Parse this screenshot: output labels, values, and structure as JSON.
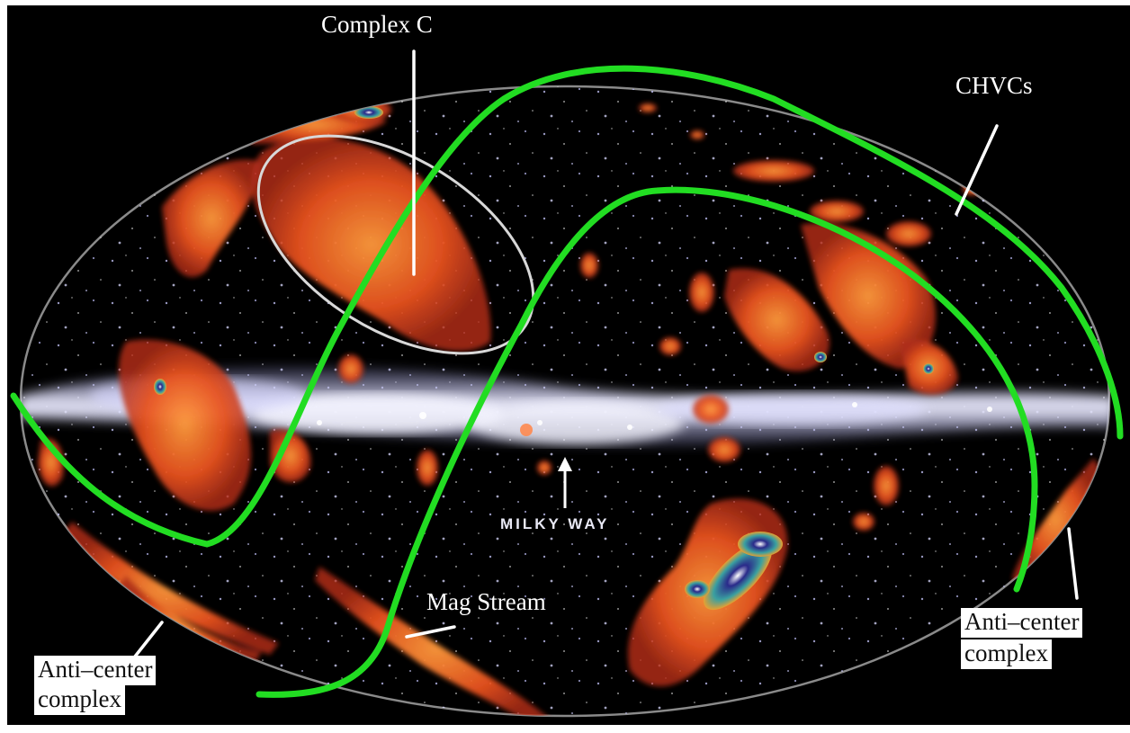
{
  "labels": {
    "complex_c": "Complex C",
    "chvcs": "CHVCs",
    "milky_way": "MILKY WAY",
    "mag_stream": "Mag Stream",
    "anti_center_left_line1": "Anti–center",
    "anti_center_left_line2": "complex",
    "anti_center_right_line1": "Anti–center",
    "anti_center_right_line2": "complex"
  },
  "colors": {
    "background": "#000000",
    "hvc_emission": "#e8521f",
    "hvc_core": "#2a2a8a",
    "milky_way": "#dcdcf5",
    "overlay_curve": "#22dd22",
    "complex_c_ellipse": "#d8d8d8",
    "pointer_lines": "#ffffff"
  }
}
